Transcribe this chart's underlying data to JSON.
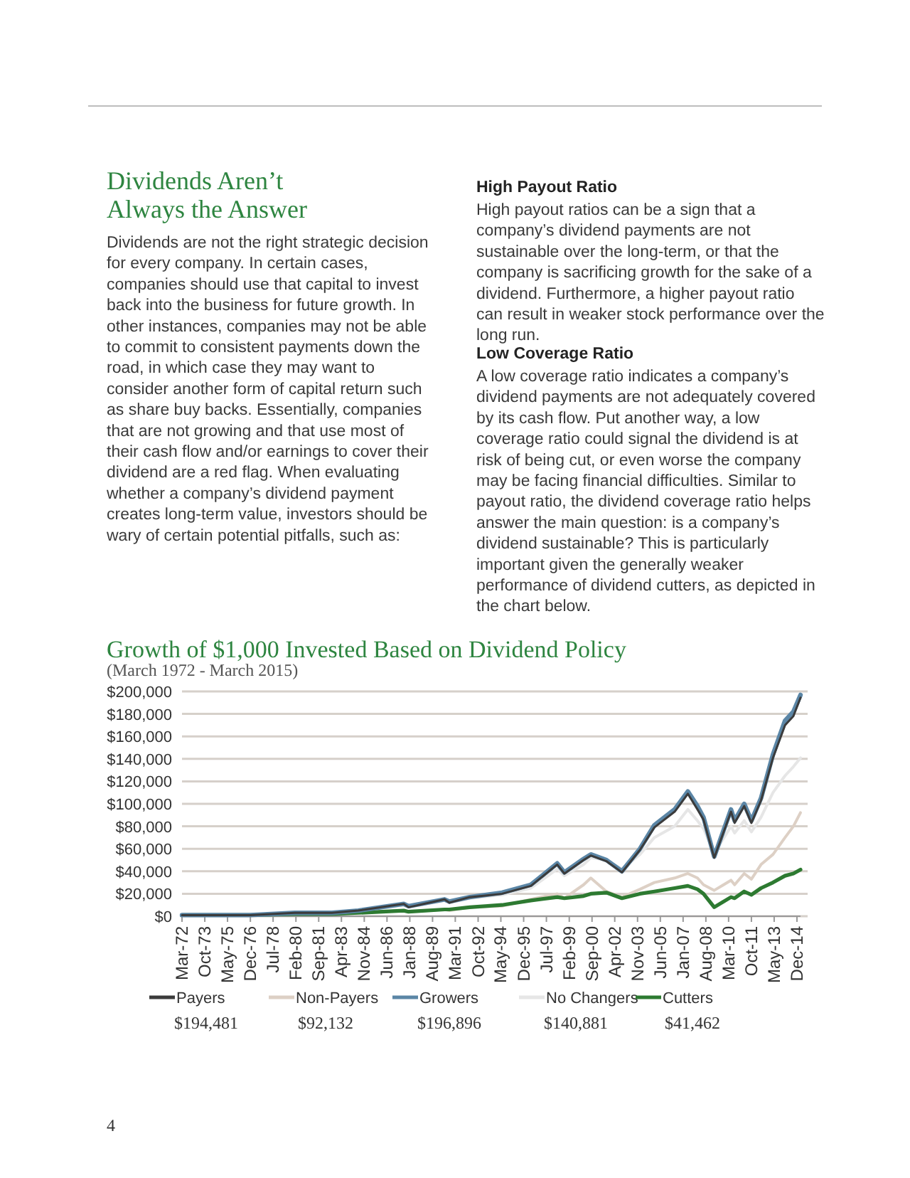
{
  "chart_data": {
    "type": "line",
    "title": "Growth of $1,000 Invested Based on Dividend Policy",
    "subtitle": "(March 1972 - March 2015)",
    "annotations": [
      "Dividends Aren’t Always the Answer",
      "Dividends are not the right strategic decision for every company. In certain cases, companies should use that capital to invest back into the business for future growth. In other instances, companies may not be able to commit to consistent payments down the road, in which case they may want to consider another form of capital return such as share buy backs. Essentially, companies that are not growing and that use most of their cash flow and/or earnings to cover their dividend are a red flag. When evaluating whether a company’s dividend payment creates long-term value, investors should be wary of certain potential pitfalls, such as:",
      "High Payout Ratio",
      "High payout ratios can be a sign that a company’s dividend payments are not sustainable over the long-term, or that the company is sacrificing growth for the sake of a dividend. Furthermore, a higher payout ratio can result in weaker stock performance over the long run.",
      "Low Coverage Ratio",
      "A low coverage ratio indicates a company’s dividend payments are not adequately covered by its cash flow. Put another way, a low coverage ratio could signal the dividend is at risk of being cut, or even worse the company may be facing financial difficulties. Similar to payout ratio, the dividend coverage ratio helps answer the main question: is a company’s dividend sustainable? This is particularly important given the generally weaker performance of dividend cutters, as depicted in the chart below.",
      "$194,481",
      "$92,132",
      "$196,896",
      "$140,881",
      "$41,462",
      "4"
    ],
    "x": [
      "1972-03",
      "1974-09",
      "1976-12",
      "1980-01",
      "1982-08",
      "1984-06",
      "1987-08",
      "1987-12",
      "1990-06",
      "1990-10",
      "1992-03",
      "1994-06",
      "1996-06",
      "1998-04",
      "1998-10",
      "2000-02",
      "2000-08",
      "2001-09",
      "2002-10",
      "2004-01",
      "2005-01",
      "2006-06",
      "2007-05",
      "2008-01",
      "2008-06",
      "2009-03",
      "2010-05",
      "2010-08",
      "2011-04",
      "2011-10",
      "2012-06",
      "2013-04",
      "2014-02",
      "2014-09",
      "2015-03"
    ],
    "series": [
      {
        "name": "Payers",
        "color": "#3b3b3b",
        "values": [
          1000,
          1000,
          1000,
          3000,
          3000,
          5000,
          11000,
          8000,
          15000,
          12000,
          17000,
          20000,
          27000,
          46000,
          38000,
          50000,
          54000,
          49000,
          39000,
          59000,
          79000,
          93000,
          109000,
          95000,
          86000,
          52000,
          93000,
          83000,
          98000,
          83000,
          103000,
          141000,
          170000,
          178000,
          194481
        ]
      },
      {
        "name": "Non-Payers",
        "color": "#ddd0c5",
        "values": [
          1000,
          1000,
          1000,
          2000,
          2000,
          3000,
          5000,
          4000,
          6000,
          5000,
          8000,
          9000,
          15000,
          20000,
          16000,
          28000,
          34000,
          22000,
          17000,
          24000,
          30000,
          34000,
          38000,
          34000,
          28000,
          23000,
          32000,
          28000,
          38000,
          33000,
          46000,
          55000,
          70000,
          80000,
          92132
        ]
      },
      {
        "name": "Growers",
        "color": "#5b86a6",
        "values": [
          1000,
          1000,
          1000,
          3000,
          3000,
          5000,
          11000,
          9000,
          15000,
          13000,
          17000,
          21000,
          28000,
          47000,
          39000,
          51000,
          55000,
          50000,
          40000,
          60000,
          81000,
          95000,
          111000,
          98000,
          88000,
          53000,
          95000,
          85000,
          100000,
          85000,
          105000,
          144000,
          174000,
          182000,
          196896
        ]
      },
      {
        "name": "No Changers",
        "color": "#e6e6e6",
        "values": [
          1000,
          1000,
          1000,
          3000,
          3000,
          5000,
          10000,
          8000,
          14000,
          12000,
          16000,
          19000,
          25000,
          42000,
          36000,
          46000,
          52000,
          50000,
          42000,
          55000,
          70000,
          80000,
          95000,
          85000,
          78000,
          56000,
          80000,
          74000,
          85000,
          75000,
          88000,
          110000,
          125000,
          133000,
          140881
        ]
      },
      {
        "name": "Cutters",
        "color": "#2d7a31",
        "values": [
          1000,
          1000,
          1000,
          2000,
          2000,
          3000,
          5000,
          4000,
          6000,
          6000,
          8000,
          10000,
          14000,
          17000,
          16000,
          18000,
          20000,
          21000,
          16000,
          20000,
          22000,
          25000,
          27000,
          24000,
          20000,
          8000,
          17000,
          16000,
          22000,
          19000,
          25000,
          30000,
          36000,
          38000,
          41462
        ]
      }
    ],
    "xlim": [
      "1972-03",
      "2015-03"
    ],
    "xticks": [
      {
        "value": "1972-03",
        "label": "Mar-72"
      },
      {
        "value": "1973-10",
        "label": "Oct-73"
      },
      {
        "value": "1975-05",
        "label": "May-75"
      },
      {
        "value": "1976-12",
        "label": "Dec-76"
      },
      {
        "value": "1978-07",
        "label": "Jul-78"
      },
      {
        "value": "1980-02",
        "label": "Feb-80"
      },
      {
        "value": "1981-09",
        "label": "Sep-81"
      },
      {
        "value": "1983-04",
        "label": "Apr-83"
      },
      {
        "value": "1984-11",
        "label": "Nov-84"
      },
      {
        "value": "1986-06",
        "label": "Jun-86"
      },
      {
        "value": "1988-01",
        "label": "Jan-88"
      },
      {
        "value": "1989-08",
        "label": "Aug-89"
      },
      {
        "value": "1991-03",
        "label": "Mar-91"
      },
      {
        "value": "1992-10",
        "label": "Oct-92"
      },
      {
        "value": "1994-05",
        "label": "May-94"
      },
      {
        "value": "1995-12",
        "label": "Dec-95"
      },
      {
        "value": "1997-07",
        "label": "Jul-97"
      },
      {
        "value": "1999-02",
        "label": "Feb-99"
      },
      {
        "value": "2000-09",
        "label": "Sep-00"
      },
      {
        "value": "2002-04",
        "label": "Apr-02"
      },
      {
        "value": "2003-11",
        "label": "Nov-03"
      },
      {
        "value": "2005-06",
        "label": "Jun-05"
      },
      {
        "value": "2007-01",
        "label": "Jan-07"
      },
      {
        "value": "2008-08",
        "label": "Aug-08"
      },
      {
        "value": "2010-03",
        "label": "Mar-10"
      },
      {
        "value": "2011-10",
        "label": "Oct-11"
      },
      {
        "value": "2013-05",
        "label": "May-13"
      },
      {
        "value": "2014-12",
        "label": "Dec-14"
      }
    ],
    "ylim": [
      0,
      200000
    ],
    "yticks": [
      {
        "value": 0,
        "label": "$0"
      },
      {
        "value": 20000,
        "label": "$20,000"
      },
      {
        "value": 40000,
        "label": "$40,000"
      },
      {
        "value": 60000,
        "label": "$60,000"
      },
      {
        "value": 80000,
        "label": "$80,000"
      },
      {
        "value": 100000,
        "label": "$100,000"
      },
      {
        "value": 120000,
        "label": "$120,000"
      },
      {
        "value": 140000,
        "label": "$140,000"
      },
      {
        "value": 160000,
        "label": "$160,000"
      },
      {
        "value": 180000,
        "label": "$180,000"
      },
      {
        "value": 200000,
        "label": "$200,000"
      }
    ],
    "grid": "y",
    "legend": "bottom",
    "marker": "none",
    "line_style": "solid"
  }
}
